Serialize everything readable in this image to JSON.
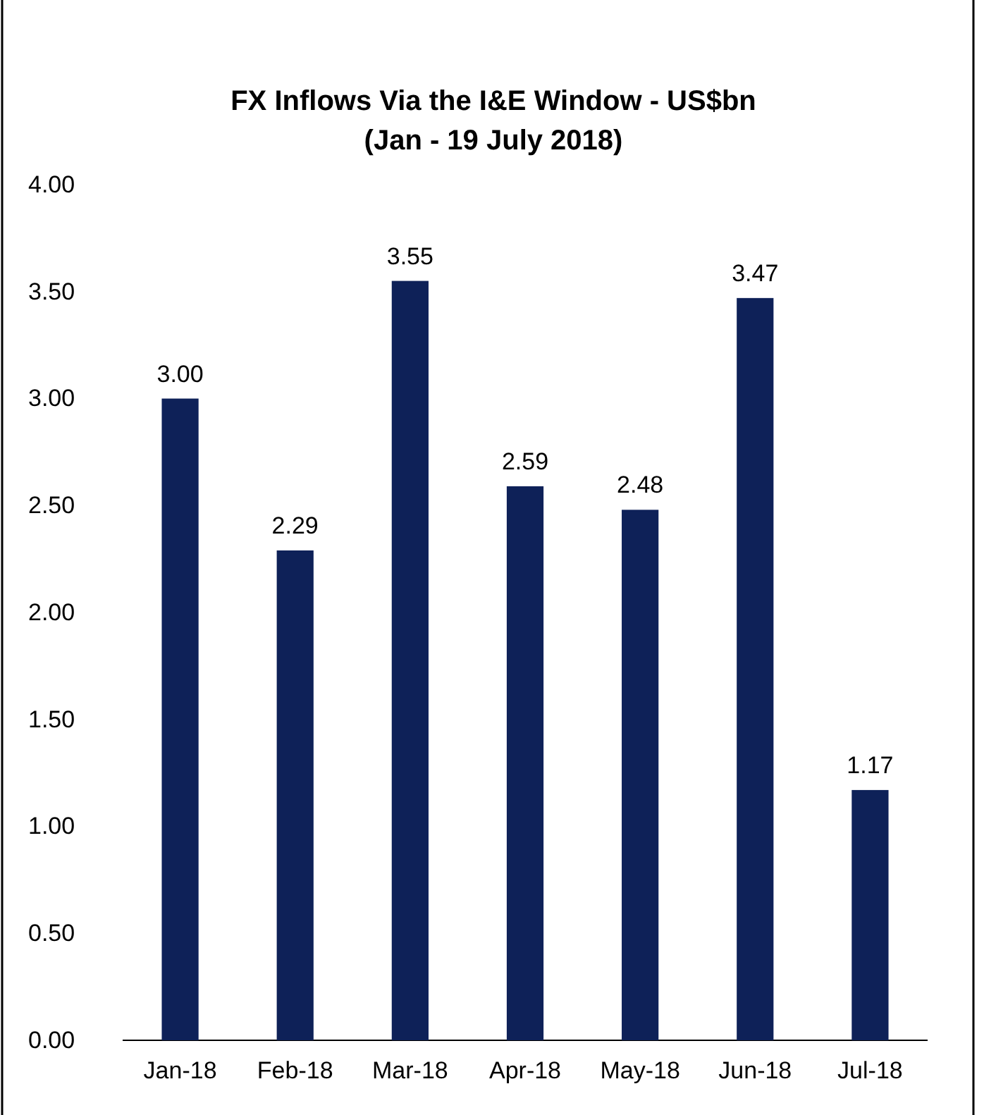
{
  "chart_data": {
    "type": "bar",
    "title": "FX Inflows Via the I&E Window - US$bn",
    "subtitle": "(Jan - 19 July 2018)",
    "categories": [
      "Jan-18",
      "Feb-18",
      "Mar-18",
      "Apr-18",
      "May-18",
      "Jun-18",
      "Jul-18"
    ],
    "values": [
      3.0,
      2.29,
      3.55,
      2.59,
      2.48,
      3.47,
      1.17
    ],
    "color": "#0e2158",
    "ylim": [
      0,
      4
    ],
    "yticks": [
      {
        "value": 0,
        "label": "0.00"
      },
      {
        "value": 0.5,
        "label": "0.50"
      },
      {
        "value": 1,
        "label": "1.00"
      },
      {
        "value": 1.5,
        "label": "1.50"
      },
      {
        "value": 2,
        "label": "2.00"
      },
      {
        "value": 2.5,
        "label": "2.50"
      },
      {
        "value": 3,
        "label": "3.00"
      },
      {
        "value": 3.5,
        "label": "3.50"
      },
      {
        "value": 4,
        "label": "4.00"
      }
    ],
    "value_labels": [
      "3.00",
      "2.29",
      "3.55",
      "2.59",
      "2.48",
      "3.47",
      "1.17"
    ],
    "grid": false
  }
}
